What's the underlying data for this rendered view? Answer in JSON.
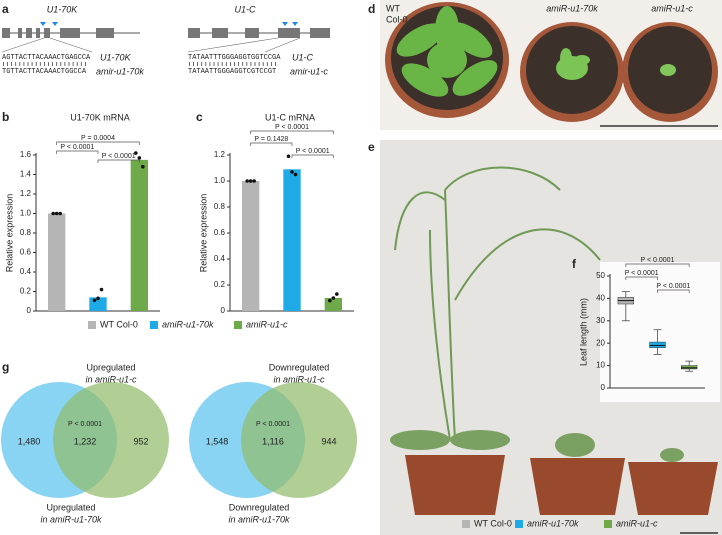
{
  "panel_labels": [
    "a",
    "b",
    "c",
    "d",
    "e",
    "f",
    "g"
  ],
  "genes": [
    {
      "name": "U1-70K",
      "seq_target": "AGTTACTTACAAACTGAGCCA",
      "seq_amir": "TGTTACTTACAAACTGGCCA",
      "target_label": "U1-70K",
      "amir_label": "amir-u1-70k"
    },
    {
      "name": "U1-C",
      "seq_target": "TATAATTTGGGAGGTGGTCCGA",
      "seq_amir": "TATAATTGGGAGGTCGTCCGT",
      "target_label": "U1-C",
      "amir_label": "amir-u1-c"
    }
  ],
  "photo_labels": [
    "WT",
    "Col-0",
    "amiR-u1-70k",
    "amiR-u1-c"
  ],
  "legend": {
    "names": [
      "WT Col-0",
      "amiR-u1-70k",
      "amiR-u1-c"
    ],
    "colors": [
      "#b5b5b5",
      "#1eaae6",
      "#6faa4a"
    ]
  },
  "chart_data": [
    {
      "type": "bar",
      "title": "U1-70K mRNA",
      "y_label": "Relative expression",
      "values": [
        1.0,
        0.14,
        1.55
      ],
      "colors": [
        "#b5b5b5",
        "#1eaae6",
        "#6faa4a"
      ],
      "points": [
        [
          1.0,
          1.0,
          1.0
        ],
        [
          0.11,
          0.13,
          0.22
        ],
        [
          1.62,
          1.57,
          1.48
        ]
      ],
      "ylim": [
        0,
        1.6
      ],
      "yticks": [
        0,
        0.2,
        0.4,
        0.6,
        0.8,
        {
          "value": 1,
          "label": "1.0"
        },
        1.2,
        1.4,
        1.6
      ],
      "annotations": [
        {
          "text": "P = 0.0004",
          "from": 0,
          "to": 2
        },
        {
          "text": "P < 0.0001",
          "from": 0,
          "to": 1
        },
        {
          "text": "P < 0.0001",
          "from": 1,
          "to": 2
        }
      ]
    },
    {
      "type": "bar",
      "title": "U1-C mRNA",
      "y_label": "Relative expression",
      "values": [
        1.0,
        1.09,
        0.1
      ],
      "colors": [
        "#b5b5b5",
        "#1eaae6",
        "#6faa4a"
      ],
      "points": [
        [
          1.0,
          1.0,
          1.0
        ],
        [
          1.19,
          1.07,
          1.05
        ],
        [
          0.08,
          0.1,
          0.13
        ]
      ],
      "ylim": [
        0,
        1.2
      ],
      "yticks": [
        0,
        0.2,
        0.4,
        0.6,
        0.8,
        {
          "value": 1,
          "label": "1.0"
        },
        1.2
      ],
      "annotations": [
        {
          "text": "P < 0.0001",
          "from": 0,
          "to": 2
        },
        {
          "text": "P = 0.1428",
          "from": 0,
          "to": 1
        },
        {
          "text": "P < 0.0001",
          "from": 1,
          "to": 2
        }
      ]
    },
    {
      "type": "box",
      "y_label": "Leaf length (mm)",
      "colors": [
        "#b5b5b5",
        "#1eaae6",
        "#6faa4a"
      ],
      "boxes": [
        {
          "whislo": 30,
          "q1": 37.5,
          "med": 39,
          "q3": 40.5,
          "whishi": 43
        },
        {
          "whislo": 15,
          "q1": 18,
          "med": 19,
          "q3": 20.5,
          "whishi": 26
        },
        {
          "whislo": 7.5,
          "q1": 8.5,
          "med": 9,
          "q3": 10,
          "whishi": 12
        }
      ],
      "ylim": [
        0,
        50
      ],
      "yticks": [
        0,
        10,
        20,
        30,
        40,
        50
      ],
      "annotations": [
        {
          "text": "P < 0.0001",
          "from": 0,
          "to": 2
        },
        {
          "text": "P < 0.0001",
          "from": 0,
          "to": 1
        },
        {
          "text": "P < 0.0001",
          "from": 1,
          "to": 2
        }
      ]
    },
    {
      "type": "venn",
      "annotation": "P < 0.0001",
      "sets": [
        {
          "label": [
            "Upregulated",
            "in amiR-u1-70k"
          ],
          "color": "#5cc3ee"
        },
        {
          "label": [
            "Upregulated",
            "in amiR-u1-c"
          ],
          "color": "#93bd6c"
        }
      ],
      "values": [
        1480,
        1232,
        952
      ],
      "value_labels": [
        "1,480",
        "1,232",
        "952"
      ]
    },
    {
      "type": "venn",
      "annotation": "P < 0.0001",
      "sets": [
        {
          "label": [
            "Downregulated",
            "in amiR-u1-70k"
          ],
          "color": "#5cc3ee"
        },
        {
          "label": [
            "Downregulated",
            "in amiR-u1-c"
          ],
          "color": "#93bd6c"
        }
      ],
      "values": [
        1548,
        1116,
        944
      ],
      "value_labels": [
        "1,548",
        "1,116",
        "944"
      ]
    }
  ]
}
